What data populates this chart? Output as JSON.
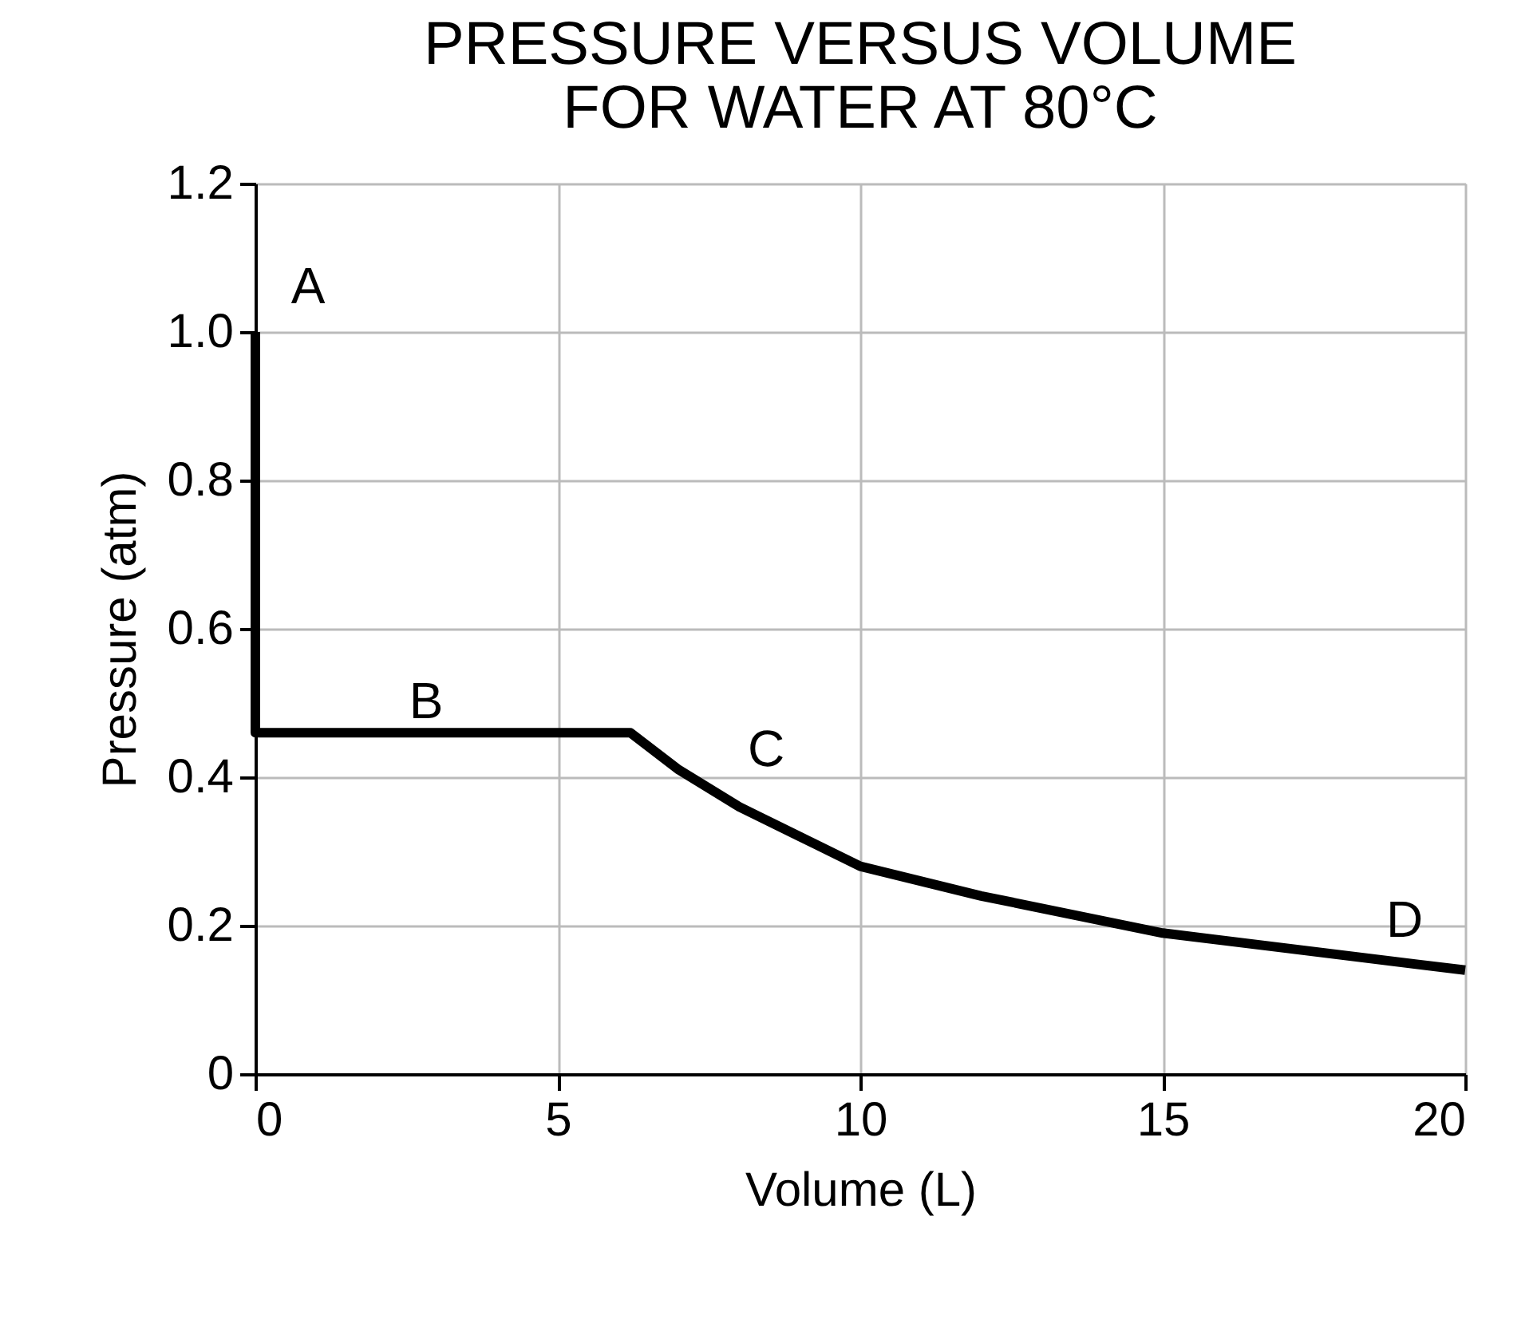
{
  "chart_data": {
    "type": "line",
    "title": "PRESSURE VERSUS VOLUME\nFOR WATER AT 80°C",
    "xlabel": "Volume (L)",
    "ylabel": "Pressure (atm)",
    "series": [
      {
        "color": "#000000",
        "x": [
          0,
          0,
          6.2,
          7,
          8,
          9,
          10,
          12,
          15,
          17,
          20
        ],
        "values": [
          1.0,
          0.46,
          0.46,
          0.41,
          0.36,
          0.32,
          0.28,
          0.24,
          0.19,
          0.17,
          0.14
        ]
      }
    ],
    "xlim": [
      0,
      20
    ],
    "xticks": [
      0,
      5,
      10,
      15,
      20
    ],
    "ylim": [
      0,
      1.2
    ],
    "yticks": [
      {
        "value": 0,
        "label": "0"
      },
      0.2,
      0.4,
      0.6,
      {
        "value": 1.0,
        "label": "1.0"
      },
      0.8,
      {
        "value": 1.2,
        "label": "1.2"
      }
    ],
    "grid": true,
    "marker": "none",
    "line_style": "solid",
    "annotations": [
      "A",
      "B",
      "C",
      "D"
    ]
  }
}
